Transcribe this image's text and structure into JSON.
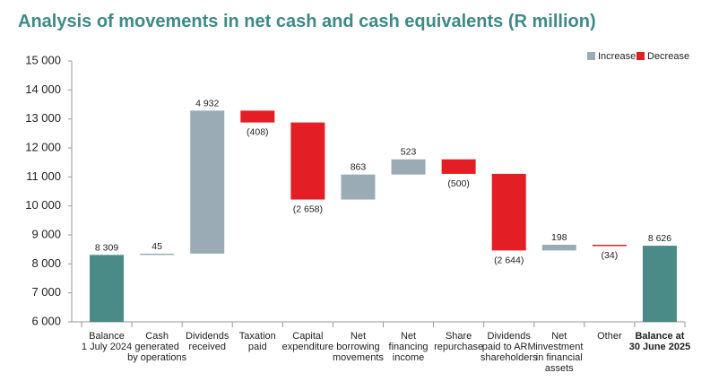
{
  "chart_data": {
    "type": "waterfall",
    "title": "Analysis of movements in net cash and cash equivalents (R million)",
    "categories": [
      [
        "Balance",
        "1 July 2024"
      ],
      [
        "Cash",
        "generated",
        "by operations"
      ],
      [
        "Dividends",
        "received"
      ],
      [
        "Taxation",
        "paid"
      ],
      [
        "Capital",
        "expenditure"
      ],
      [
        "Net",
        "borrowing",
        "movements"
      ],
      [
        "Net",
        "financing",
        "income"
      ],
      [
        "Share",
        "repurchase"
      ],
      [
        "Dividends",
        "paid to ARM",
        "shareholders"
      ],
      [
        "Net",
        "investment",
        "in financial",
        "assets"
      ],
      [
        "Other"
      ],
      [
        "Balance at",
        "30 June 2025"
      ]
    ],
    "values": [
      8309,
      45,
      4932,
      -408,
      -2658,
      863,
      523,
      -500,
      -2644,
      198,
      -34,
      8626
    ],
    "value_labels": [
      "8 309",
      "45",
      "4 932",
      "(408)",
      "(2 658)",
      "863",
      "523",
      "(500)",
      "(2 644)",
      "198",
      "(34)",
      "8 626"
    ],
    "totals": [
      true,
      false,
      false,
      false,
      false,
      false,
      false,
      false,
      false,
      false,
      false,
      true
    ],
    "total_color": "#4a8a87",
    "legend": [
      {
        "name": "Increase",
        "color": "#9aabb5"
      },
      {
        "name": "Decrease",
        "color": "#e31e24"
      }
    ],
    "ylim": [
      6000,
      15000
    ],
    "yticks": [
      {
        "value": 6000,
        "label": "6 000"
      },
      {
        "value": 7000,
        "label": "7 000"
      },
      {
        "value": 8000,
        "label": "8 000"
      },
      {
        "value": 9000,
        "label": "9 000"
      },
      {
        "value": 10000,
        "label": "10 000"
      },
      {
        "value": 11000,
        "label": "11 000"
      },
      {
        "value": 12000,
        "label": "12 000"
      },
      {
        "value": 13000,
        "label": "13 000"
      },
      {
        "value": 14000,
        "label": "14 000"
      },
      {
        "value": 15000,
        "label": "15 000"
      }
    ],
    "grid": false
  }
}
